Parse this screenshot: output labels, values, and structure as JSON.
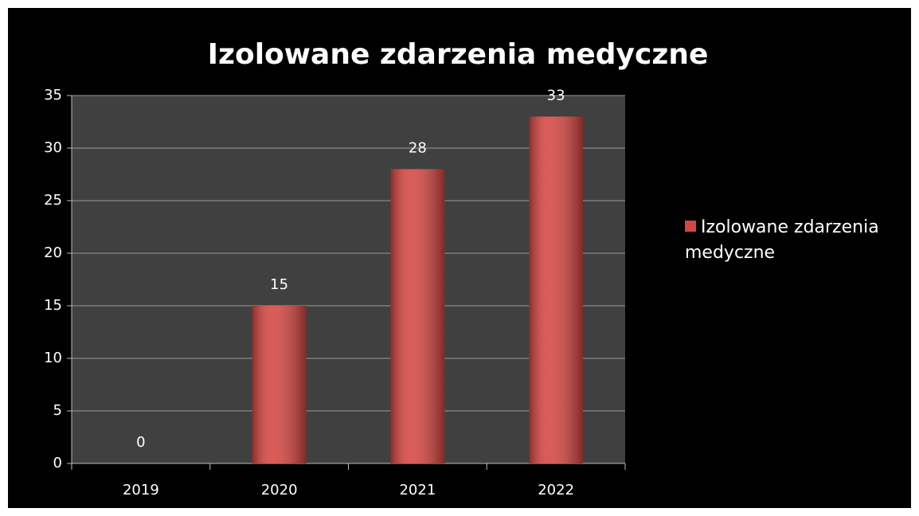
{
  "chart_data": {
    "type": "bar",
    "title": "Izolowane zdarzenia medyczne",
    "categories": [
      "2019",
      "2020",
      "2021",
      "2022"
    ],
    "series": [
      {
        "name": "Izolowane zdarzenia medyczne",
        "color": "#d64541",
        "values": [
          0,
          15,
          28,
          33
        ]
      }
    ],
    "ylim": [
      0,
      35
    ],
    "yticks": [
      0,
      5,
      10,
      15,
      20,
      25,
      30,
      35
    ],
    "grid": true,
    "legend": "right"
  }
}
